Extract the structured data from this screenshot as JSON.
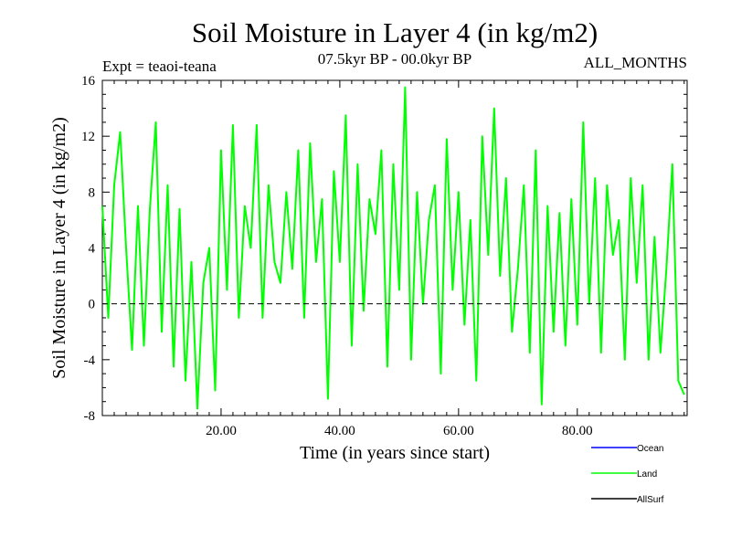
{
  "chart_data": {
    "type": "line",
    "title": "Soil Moisture in Layer 4 (in kg/m2)",
    "subtitle_left": "Expt = teaoi-teana",
    "subtitle_center": "07.5kyr BP - 00.0kyr BP",
    "subtitle_right": "ALL_MONTHS",
    "xlabel": "Time (in years since start)",
    "ylabel": "Soil Moisture in Layer 4 (in kg/m2)",
    "xlim": [
      0,
      98.5
    ],
    "ylim": [
      -8,
      16
    ],
    "x_ticks": [
      20,
      40,
      60,
      80
    ],
    "x_tick_labels": [
      "20.00",
      "40.00",
      "60.00",
      "80.00"
    ],
    "y_ticks": [
      -8,
      -4,
      0,
      4,
      8,
      12,
      16
    ],
    "y_tick_labels": [
      "-8",
      "-4",
      "0",
      "4",
      "8",
      "12",
      "16"
    ],
    "zero_line": "dashed",
    "legend": [
      {
        "name": "Ocean",
        "color": "#0000ff"
      },
      {
        "name": "Land",
        "color": "#00ff00"
      },
      {
        "name": "AllSurf",
        "color": "#000000"
      }
    ],
    "series": [
      {
        "name": "Land",
        "color": "#00ff00",
        "x": [
          0,
          1,
          2,
          3,
          4,
          5,
          6,
          7,
          8,
          9,
          10,
          11,
          12,
          13,
          14,
          15,
          16,
          17,
          18,
          19,
          20,
          21,
          22,
          23,
          24,
          25,
          26,
          27,
          28,
          29,
          30,
          31,
          32,
          33,
          34,
          35,
          36,
          37,
          38,
          39,
          40,
          41,
          42,
          43,
          44,
          45,
          46,
          47,
          48,
          49,
          50,
          51,
          52,
          53,
          54,
          55,
          56,
          57,
          58,
          59,
          60,
          61,
          62,
          63,
          64,
          65,
          66,
          67,
          68,
          69,
          70,
          71,
          72,
          73,
          74,
          75,
          76,
          77,
          78,
          79,
          80,
          81,
          82,
          83,
          84,
          85,
          86,
          87,
          88,
          89,
          90,
          91,
          92,
          93,
          94,
          95,
          96,
          97,
          98
        ],
        "values": [
          7,
          -1,
          8.5,
          12.3,
          4,
          -3.3,
          7,
          -3,
          6.8,
          13,
          -2,
          8.5,
          -4.5,
          6.8,
          -5.5,
          3,
          -7.5,
          1.5,
          4,
          -6.2,
          11,
          1,
          12.8,
          -1,
          7,
          4,
          12.8,
          -1,
          8.5,
          3,
          1.5,
          8,
          2.5,
          11,
          -1,
          11.5,
          3,
          7.5,
          -6.8,
          9.5,
          3,
          13.5,
          -3,
          10,
          -0.5,
          7.5,
          5,
          11,
          -4.5,
          10,
          1,
          15.5,
          -4,
          8,
          0,
          6,
          8.5,
          -5,
          11.8,
          1,
          8,
          -1.5,
          6,
          -5.5,
          12,
          3.5,
          14,
          2,
          9,
          -2,
          2.5,
          8.5,
          -3.5,
          11,
          -7.2,
          7,
          -2,
          6.5,
          -3,
          7.5,
          -1.5,
          13,
          0,
          9,
          -3.5,
          8.5,
          3.5,
          6,
          -4,
          9,
          1.5,
          8.5,
          -4,
          4.8,
          -3.5,
          2.5,
          10,
          -5.5,
          -6.5
        ]
      }
    ]
  }
}
